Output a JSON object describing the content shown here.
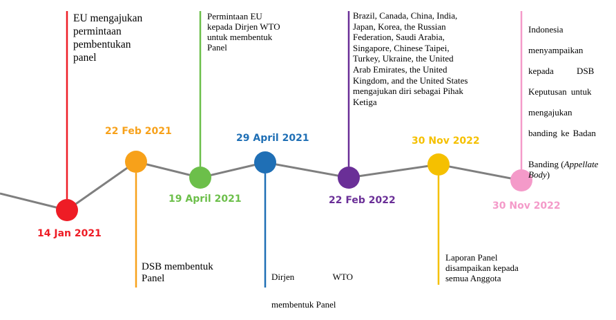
{
  "timeline": {
    "events": [
      {
        "id": "ev-14-jan-2021",
        "date": "14 Jan 2021",
        "color": "#ee1c25",
        "text": "EU mengajukan\npermintaan\npembentukan\npanel"
      },
      {
        "id": "ev-22-feb-2021",
        "date": "22 Feb 2021",
        "color": "#f7a11a",
        "text": "DSB membentuk\nPanel"
      },
      {
        "id": "ev-19-april-2021",
        "date": "19 April 2021",
        "color": "#6cbf4a",
        "text": "Permintaan EU\nkepada Dirjen WTO\nuntuk membentuk\nPanel"
      },
      {
        "id": "ev-29-april-2021",
        "date": "29 April 2021",
        "color": "#1f6fb5",
        "text_line1_left": "Dirjen",
        "text_line1_right": "WTO",
        "text_line2": "membentuk Panel"
      },
      {
        "id": "ev-22-feb-2022",
        "date": "22 Feb 2022",
        "color": "#6a2f97",
        "text": "Brazil, Canada, China, India,\nJapan, Korea, the Russian\nFederation, Saudi Arabia,\nSingapore, Chinese Taipei,\nTurkey, Ukraine, the United\nArab Emirates, the United\nKingdom, and the United States\nmengajukan diri sebagai Pihak\nKetiga"
      },
      {
        "id": "ev-30-nov-2022-a",
        "date": "30 Nov 2022",
        "color": "#f5c000",
        "text": "Laporan Panel\ndisampaikan kepada\nsemua Anggota"
      },
      {
        "id": "ev-30-nov-2022-b",
        "date": "30 Nov 2022",
        "color": "#f49ac9",
        "text_lines": [
          "Indonesia",
          "menyampaikan",
          "kepada DSB",
          "Keputusan untuk",
          "mengajukan",
          "banding ke Badan"
        ],
        "text_last_plain": "Banding (",
        "text_last_italic": "Appellate Body",
        "text_last_close": ")"
      }
    ]
  }
}
